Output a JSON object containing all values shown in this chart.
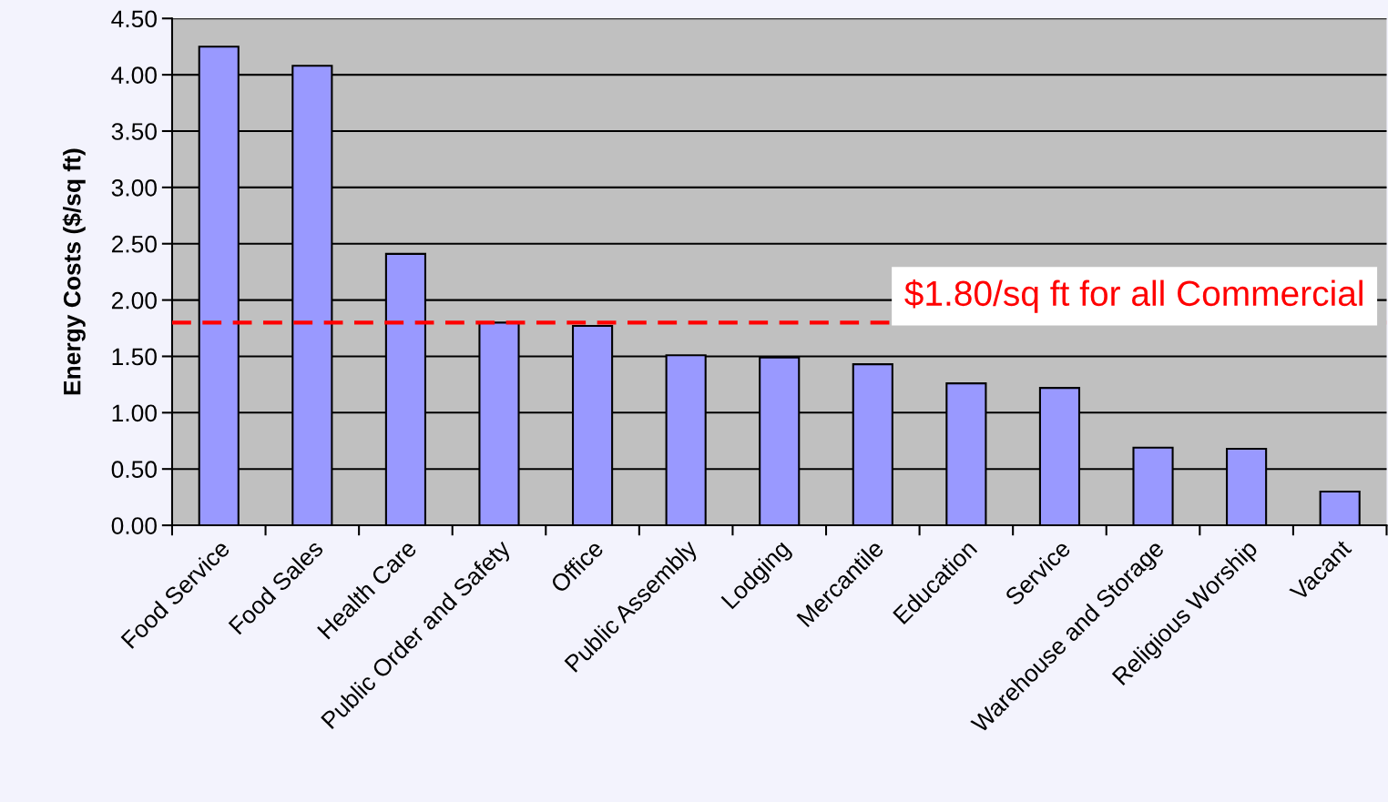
{
  "chart_data": {
    "type": "bar",
    "ylabel": "Energy Costs ($/sq ft)",
    "categories": [
      "Food Service",
      "Food Sales",
      "Health Care",
      "Public Order and Safety",
      "Office",
      "Public Assembly",
      "Lodging",
      "Mercantile",
      "Education",
      "Service",
      "Warehouse and Storage",
      "Religious Worship",
      "Vacant"
    ],
    "values": [
      4.25,
      4.08,
      2.41,
      1.8,
      1.77,
      1.51,
      1.49,
      1.43,
      1.26,
      1.22,
      0.69,
      0.68,
      0.3
    ],
    "color": "#9999ff",
    "ylim": [
      0,
      4.5
    ],
    "yticks": [
      {
        "value": 0,
        "label": "0.00"
      },
      {
        "value": 0.5,
        "label": "0.50"
      },
      {
        "value": 1,
        "label": "1.00"
      },
      {
        "value": 1.5,
        "label": "1.50"
      },
      {
        "value": 2,
        "label": "2.00"
      },
      {
        "value": 2.5,
        "label": "2.50"
      },
      {
        "value": 3,
        "label": "3.00"
      },
      {
        "value": 3.5,
        "label": "3.50"
      },
      {
        "value": 4,
        "label": "4.00"
      },
      {
        "value": 4.5,
        "label": "4.50"
      }
    ],
    "grid": "y",
    "ref_lines": [
      {
        "axis": "y",
        "value": 1.8,
        "label": "$1.80/sq ft for all Commercial",
        "color": "#ff0000",
        "line_style": "dashed"
      }
    ]
  }
}
